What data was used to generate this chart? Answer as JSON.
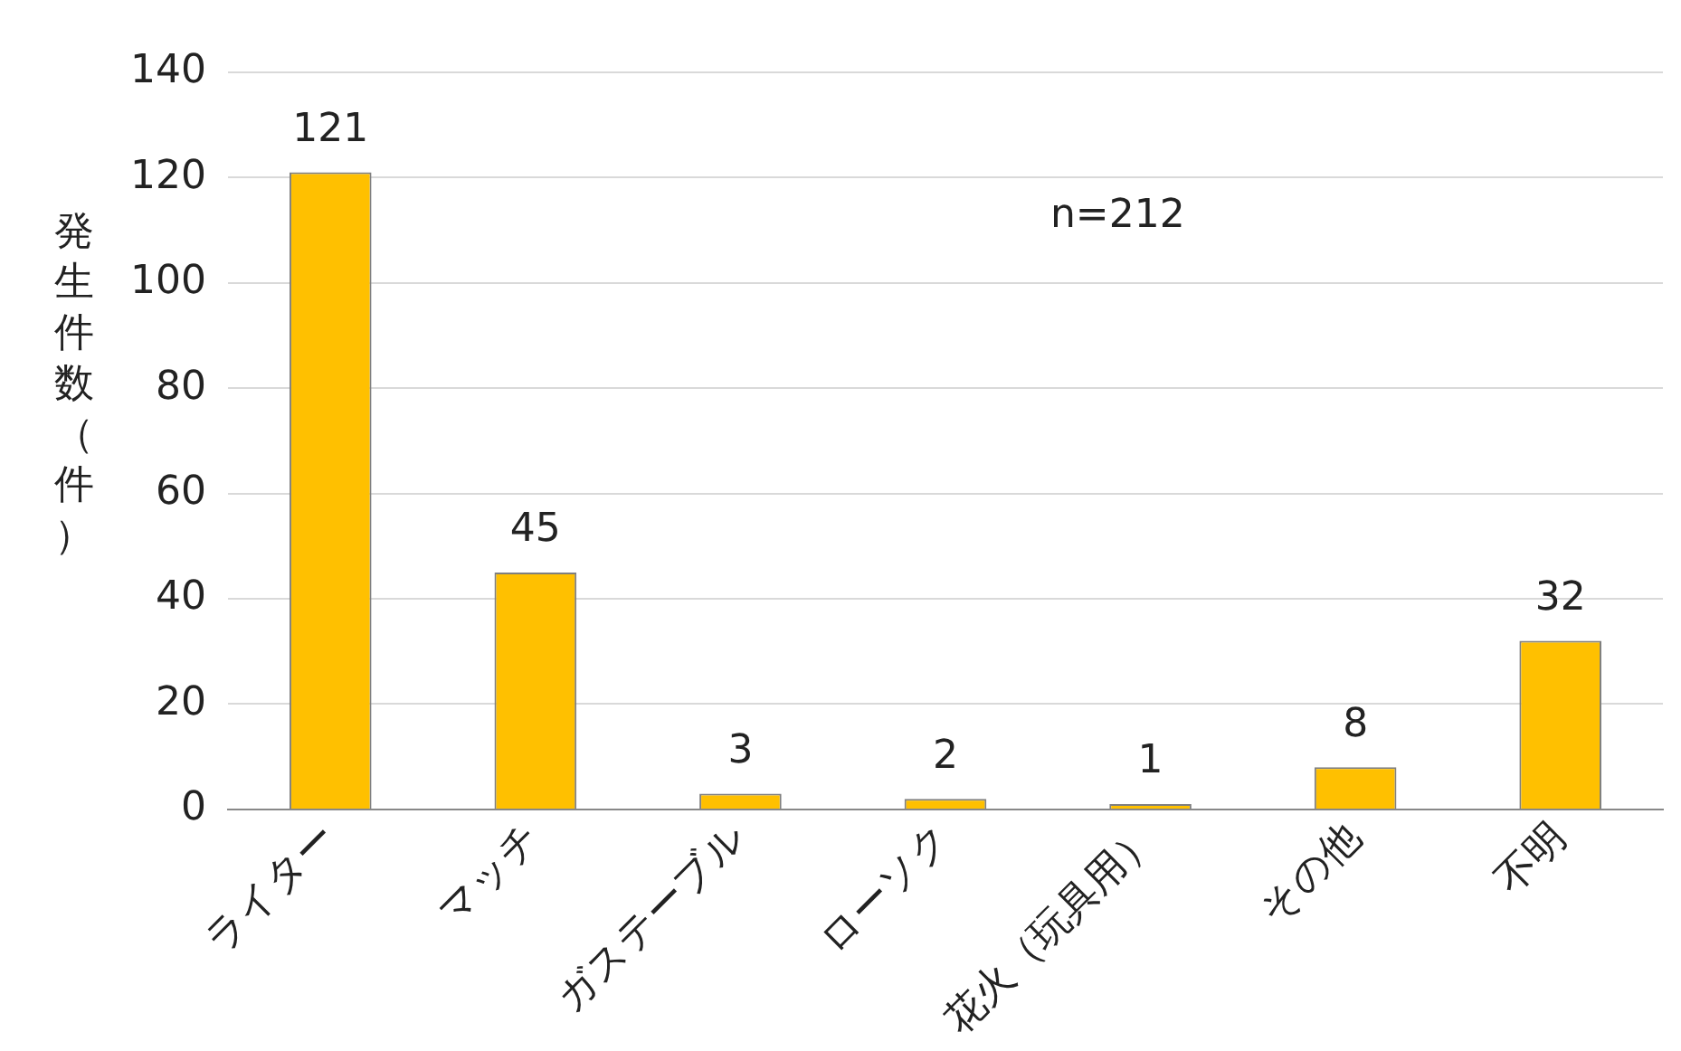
{
  "chart_data": {
    "type": "bar",
    "ylabel": "発生件数（件）",
    "categories": [
      "ライター",
      "マッチ",
      "ガステーブル",
      "ローソク",
      "花火（玩具用）",
      "その他",
      "不明"
    ],
    "values": [
      121,
      45,
      3,
      2,
      1,
      8,
      32
    ],
    "color": "#ffc000",
    "ylim": [
      0,
      140
    ],
    "yticks": [
      0,
      20,
      40,
      60,
      80,
      100,
      120,
      140
    ],
    "grid": "y",
    "data_labels": true,
    "legend": false,
    "annotations": [
      "n=212"
    ]
  }
}
